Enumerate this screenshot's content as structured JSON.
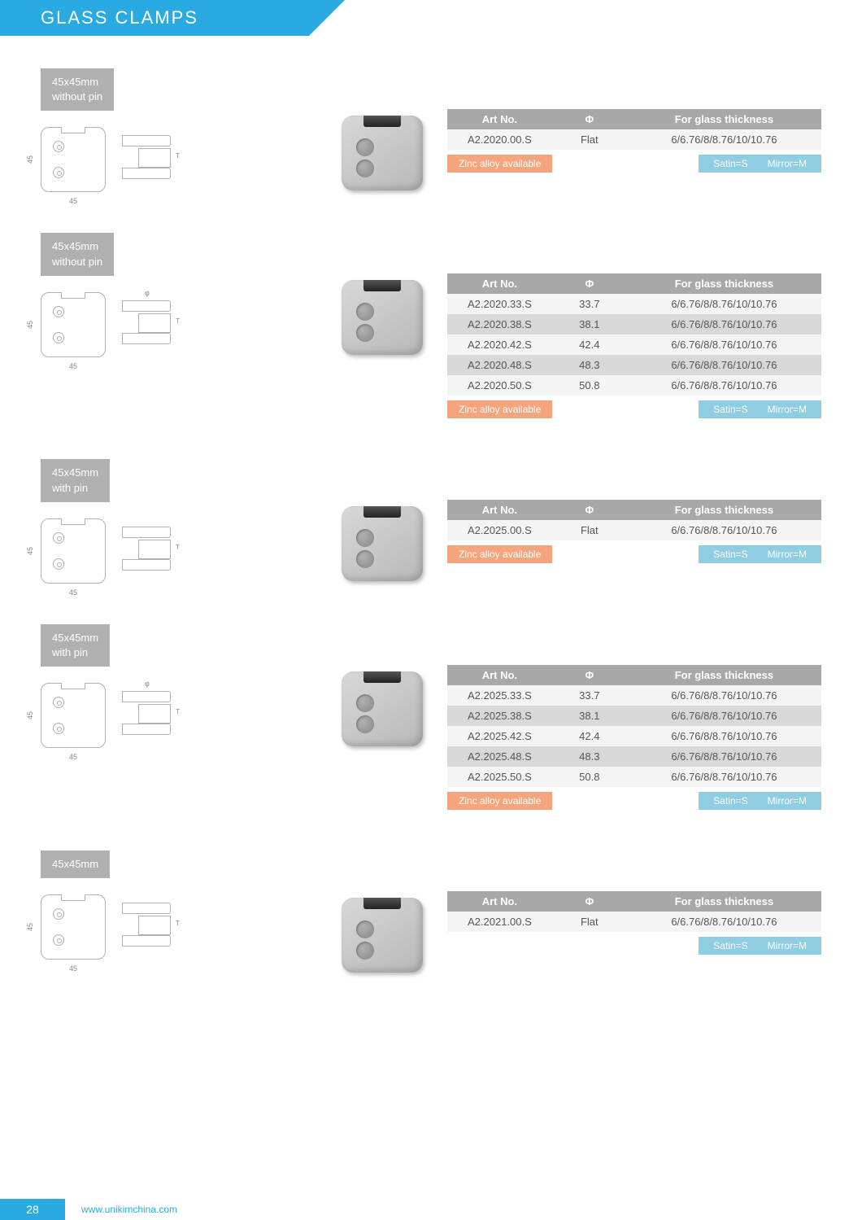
{
  "header": {
    "title": "GLASS  CLAMPS"
  },
  "columns": {
    "art": "Art No.",
    "phi": "Φ",
    "thickness": "For glass thickness"
  },
  "badges": {
    "zinc": "Zinc alloy available",
    "satin": "Satin=S",
    "mirror": "Mirror=M"
  },
  "dims": {
    "w": "45",
    "h": "45",
    "t": "T",
    "phi": "φ"
  },
  "sections": [
    {
      "tag_line1": "45x45mm",
      "tag_line2": "without pin",
      "show_phi_dim": false,
      "show_zinc": true,
      "rows": [
        {
          "art": "A2.2020.00.S",
          "phi": "Flat",
          "thick": "6/6.76/8/8.76/10/10.76"
        }
      ]
    },
    {
      "tag_line1": "45x45mm",
      "tag_line2": "without pin",
      "show_phi_dim": true,
      "show_zinc": true,
      "rows": [
        {
          "art": "A2.2020.33.S",
          "phi": "33.7",
          "thick": "6/6.76/8/8.76/10/10.76"
        },
        {
          "art": "A2.2020.38.S",
          "phi": "38.1",
          "thick": "6/6.76/8/8.76/10/10.76"
        },
        {
          "art": "A2.2020.42.S",
          "phi": "42.4",
          "thick": "6/6.76/8/8.76/10/10.76"
        },
        {
          "art": "A2.2020.48.S",
          "phi": "48.3",
          "thick": "6/6.76/8/8.76/10/10.76"
        },
        {
          "art": "A2.2020.50.S",
          "phi": "50.8",
          "thick": "6/6.76/8/8.76/10/10.76"
        }
      ]
    },
    {
      "tag_line1": "45x45mm",
      "tag_line2": "with pin",
      "show_phi_dim": false,
      "show_zinc": true,
      "rows": [
        {
          "art": "A2.2025.00.S",
          "phi": "Flat",
          "thick": "6/6.76/8/8.76/10/10.76"
        }
      ]
    },
    {
      "tag_line1": "45x45mm",
      "tag_line2": "with pin",
      "show_phi_dim": true,
      "show_zinc": true,
      "rows": [
        {
          "art": "A2.2025.33.S",
          "phi": "33.7",
          "thick": "6/6.76/8/8.76/10/10.76"
        },
        {
          "art": "A2.2025.38.S",
          "phi": "38.1",
          "thick": "6/6.76/8/8.76/10/10.76"
        },
        {
          "art": "A2.2025.42.S",
          "phi": "42.4",
          "thick": "6/6.76/8/8.76/10/10.76"
        },
        {
          "art": "A2.2025.48.S",
          "phi": "48.3",
          "thick": "6/6.76/8/8.76/10/10.76"
        },
        {
          "art": "A2.2025.50.S",
          "phi": "50.8",
          "thick": "6/6.76/8/8.76/10/10.76"
        }
      ]
    },
    {
      "tag_line1": "45x45mm",
      "tag_line2": "",
      "show_phi_dim": false,
      "show_zinc": false,
      "rows": [
        {
          "art": "A2.2021.00.S",
          "phi": "Flat",
          "thick": "6/6.76/8/8.76/10/10.76"
        }
      ]
    }
  ],
  "footer": {
    "page": "28",
    "url": "www.unikimchina.com"
  },
  "colors": {
    "primary": "#29abe2",
    "tag_bg": "#b0b0b0",
    "table_header": "#a8a8a8",
    "row_light": "#f4f4f4",
    "row_dark": "#d8d8d8",
    "zinc_badge": "#f4a57b",
    "finish_badge": "#8fcde2"
  }
}
